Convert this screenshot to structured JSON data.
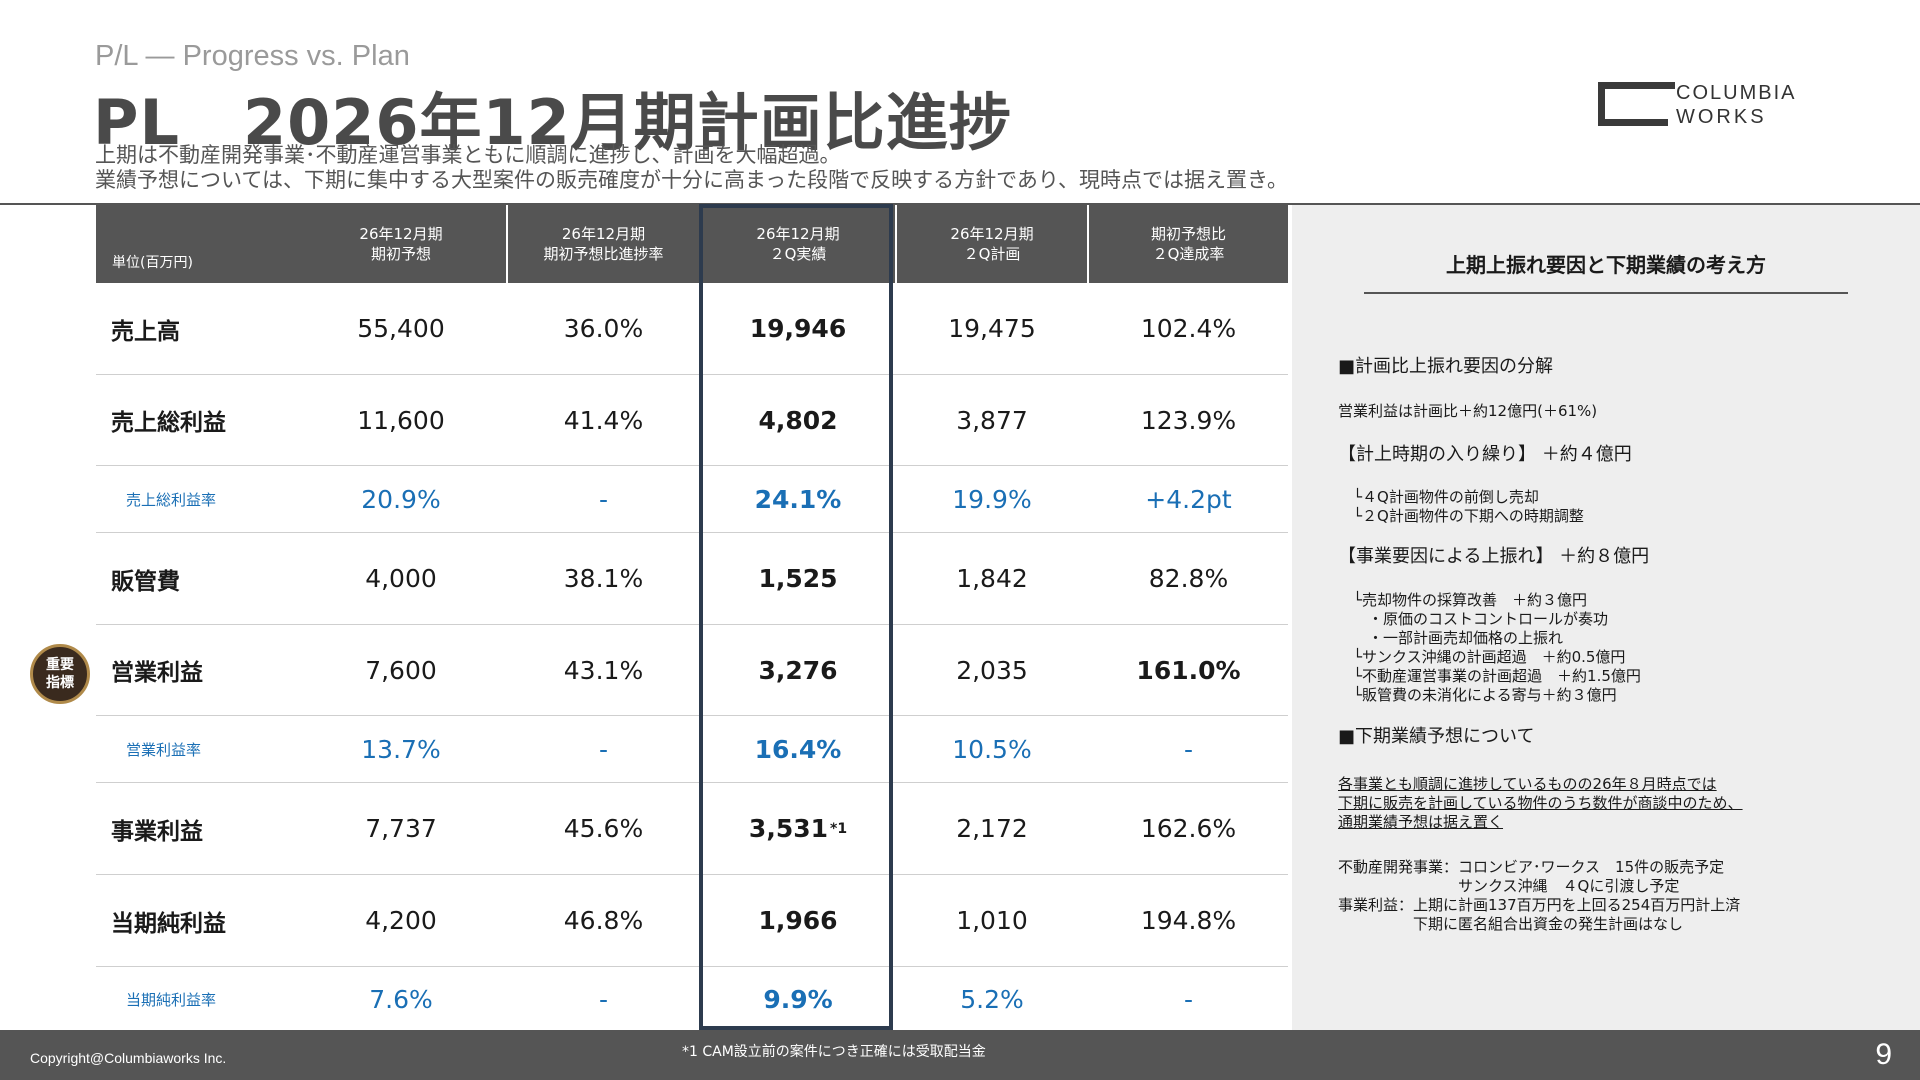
{
  "header": {
    "subtitle_en": "P/L — Progress vs. Plan",
    "title": "PL　2026年12月期計画比進捗",
    "lead_1": "上期は不動産開発事業･不動産運営事業ともに順調に進捗し、計画を大幅超過。",
    "lead_2": "業績予想については、下期に集中する大型案件の販売確度が十分に高まった段階で反映する方針であり、現時点では据え置き。"
  },
  "logo": {
    "line1": "COLUMBIA",
    "line2": "WORKS"
  },
  "table": {
    "unit": "単位(百万円)",
    "columns": [
      "26年12月期\n期初予想",
      "26年12月期\n期初予想比進捗率",
      "26年12月期\n２Q実績",
      "26年12月期\n２Q計画",
      "期初予想比\n２Q達成率"
    ],
    "rows": [
      {
        "label": "売上高",
        "values": [
          "55,400",
          "36.0%",
          "19,946",
          "19,475",
          "102.4%"
        ]
      },
      {
        "label": "売上総利益",
        "values": [
          "11,600",
          "41.4%",
          "4,802",
          "3,877",
          "123.9%"
        ]
      },
      {
        "label": "売上総利益率",
        "values": [
          "20.9%",
          "-",
          "24.1%",
          "19.9%",
          "+4.2pt"
        ]
      },
      {
        "label": "販管費",
        "values": [
          "4,000",
          "38.1%",
          "1,525",
          "1,842",
          "82.8%"
        ]
      },
      {
        "label": "営業利益",
        "values": [
          "7,600",
          "43.1%",
          "3,276",
          "2,035",
          "161.0%"
        ]
      },
      {
        "label": "営業利益率",
        "values": [
          "13.7%",
          "-",
          "16.4%",
          "10.5%",
          "-"
        ]
      },
      {
        "label": "事業利益",
        "values": [
          "7,737",
          "45.6%",
          "3,531",
          "2,172",
          "162.6%"
        ],
        "note_mark": "*1"
      },
      {
        "label": "当期純利益",
        "values": [
          "4,200",
          "46.8%",
          "1,966",
          "1,010",
          "194.8%"
        ]
      },
      {
        "label": "当期純利益率",
        "values": [
          "7.6%",
          "-",
          "9.9%",
          "5.2%",
          "-"
        ]
      }
    ]
  },
  "badge": {
    "text": "重要\n指標"
  },
  "panel": {
    "title": "上期上振れ要因と下期業績の考え方",
    "lines": [
      "■計画比上振れ要因の分解",
      "営業利益は計画比＋約12億円(＋61%)",
      "【計上時期の入り繰り】 ＋約４億円",
      "　└４Q計画物件の前倒し売却",
      "　└２Q計画物件の下期への時期調整",
      "【事業要因による上振れ】 ＋約８億円",
      "　└売却物件の採算改善　＋約３億円",
      "　　・原価のコストコントロールが奏功",
      "　　・一部計画売却価格の上振れ",
      "　└サンクス沖縄の計画超過　＋約0.5億円",
      "　└不動産運営事業の計画超過　＋約1.5億円",
      "　└販管費の未消化による寄与＋約３億円",
      "■下期業績予想について",
      "各事業とも順調に進捗しているものの26年８月時点では",
      "下期に販売を計画している物件のうち数件が商談中のため、",
      "通期業績予想は据え置く",
      "不動産開発事業：コロンビア･ワークス　15件の販売予定",
      "　　　　　　　　サンクス沖縄　４Qに引渡し予定",
      "事業利益：上期に計画137百万円を上回る254百万円計上済",
      "　　　　　下期に匿名組合出資金の発生計画はなし"
    ]
  },
  "footer": {
    "copyright": "Copyright@Columbiaworks Inc.",
    "footnote": "*1 CAM設立前の案件につき正確には受取配当金",
    "page_number": "9"
  }
}
